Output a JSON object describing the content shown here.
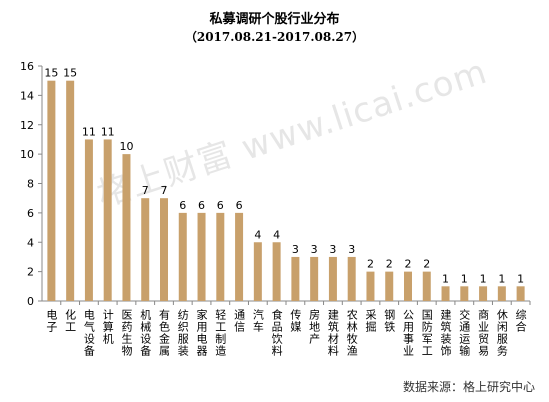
{
  "title": "私募调研个股行业分布",
  "subtitle": "（2017.08.21-2017.08.27）",
  "source": "数据来源：格上研究中心",
  "watermark": "格上财富 www.licai.com",
  "colors": {
    "bar": "#c8a06b",
    "axis": "#888888",
    "text": "#000000"
  },
  "chart_data": {
    "type": "bar",
    "categories": [
      "电子",
      "化工",
      "电气设备",
      "计算机",
      "医药生物",
      "机械设备",
      "有色金属",
      "纺织服装",
      "家用电器",
      "轻工制造",
      "通信",
      "汽车",
      "食品饮料",
      "传媒",
      "房地产",
      "建筑材料",
      "农林牧渔",
      "采掘",
      "钢铁",
      "公用事业",
      "国防军工",
      "建筑装饰",
      "交通运输",
      "商业贸易",
      "休闲服务",
      "综合"
    ],
    "values": [
      15,
      15,
      11,
      11,
      10,
      7,
      7,
      6,
      6,
      6,
      6,
      4,
      4,
      3,
      3,
      3,
      3,
      2,
      2,
      2,
      2,
      1,
      1,
      1,
      1,
      1
    ],
    "ylim": [
      0,
      16
    ],
    "yticks": [
      0,
      2,
      4,
      6,
      8,
      10,
      12,
      14,
      16
    ],
    "grid": false,
    "data_labels": true
  }
}
